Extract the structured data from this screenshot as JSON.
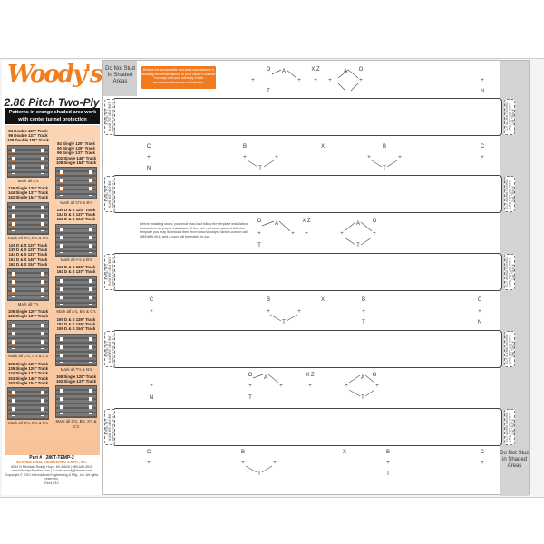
{
  "brand": {
    "logo": "Woody's",
    "subtitle": "2.86 Pitch Two-Ply",
    "banner": "Patterns in orange shaded area work with center tunnel protection",
    "brand_color": "#f07e1e"
  },
  "groups": [
    {
      "labels": [
        "84 Double 120\" Track",
        "96 Double 137\" Track",
        "108 Double 154\" Track"
      ],
      "caption": "Mark all A's"
    },
    {
      "labels": [
        "84 Single 120\" Track",
        "90 Single 129\" Track",
        "96 Single 137\" Track",
        "102 Single 146\" Track",
        "108 Single 154\" Track"
      ],
      "caption": "Mark all O's & B's"
    },
    {
      "labels": [
        "126 Single 120\" Track",
        "144 Single 137\" Track",
        "162 Single 154\" Track"
      ],
      "caption": "Mark all O's, B's & C's"
    },
    {
      "labels": [
        "136 D & S 120\" Track",
        "144 D & S 137\" Track",
        "162 D & S 154\" Track"
      ],
      "caption": "Mark all A's & B's"
    },
    {
      "labels": [
        "126 D & S 120\" Track",
        "135 D & S 129\" Track",
        "144 D & S 137\" Track",
        "153 D & S 146\" Track",
        "162 D & S 154\" Track"
      ],
      "caption": "Mark all T's"
    },
    {
      "labels": [
        "168 D & S 120\" Track",
        "192 D & S 137\" Track"
      ],
      "caption": "Mark all A's, B's & C's"
    },
    {
      "labels": [
        "105 Single 120\" Track",
        "120 Single 137\" Track"
      ],
      "caption": "Mark all O's, C's & Z's"
    },
    {
      "labels": [
        "165 D & S 129\" Track",
        "187 D & S 146\" Track",
        "198 D & S 154\" Track"
      ],
      "caption": "Mark all T's & N's"
    },
    {
      "labels": [
        "126 Single 120\" Track",
        "135 Single 129\" Track",
        "144 Single 137\" Track",
        "153 Single 146\" Track",
        "162 Single 154\" Track"
      ],
      "caption": "Mark all O's, B's & X's"
    },
    {
      "labels": [
        "168 Single 120\" Track",
        "192 Single 137\" Track"
      ],
      "caption": "Mark all O's, B's, X's & C's"
    }
  ],
  "footer": {
    "part": "Part # - 286T-TEMP-2",
    "company": "INTERNATIONAL ENGINEERING & MFG., INC.",
    "address": "6054 N Meridian Road | Hope, MI 48628 | 989-689-4911",
    "web": "www.WoodysTraction.com | E-mail: woody@iemwr.com",
    "copyright": "Copyright © 2010 International Engineering & Mfg., Inc. All rights reserved.",
    "rev": "Rev12/10"
  },
  "template": {
    "do_not_stud": "Do Not Stud in Shaded Areas",
    "warning": "Review the snowmobile and track manufacturer's studding recommendations in your owner's manual. You may void your warranty if their recommendations are not followed.",
    "instructions": "Before installing studs, you must read and follow the template installation instructions for proper installation. If they are not accompanied with this template you may download them from www.WoodysTraction.com or call (989)689-4911 and a copy will be mailed to you.",
    "tab_text": "CUT ALONG DASHED LINE FOR USE WITH 2.86 TRACK"
  },
  "marks": {
    "O": "O",
    "A": "A",
    "XZ": "X  Z",
    "X": "X",
    "T": "T",
    "N": "N",
    "C": "C",
    "B": "B",
    "dot": "+"
  }
}
